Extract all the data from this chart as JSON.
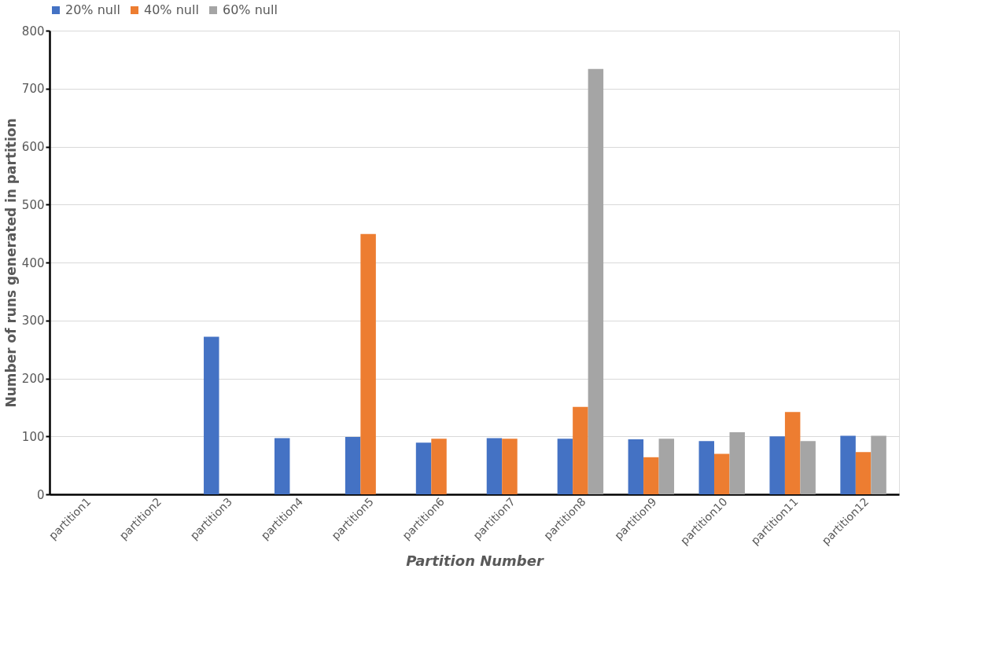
{
  "chart_data": {
    "type": "bar",
    "xlabel": "Partition Number",
    "ylabel": "Number of runs generated in partition",
    "categories": [
      "partition1",
      "partition2",
      "partition3",
      "partition4",
      "partition5",
      "partition6",
      "partition7",
      "partition8",
      "partition9",
      "partition10",
      "partition11",
      "partition12"
    ],
    "series": [
      {
        "name": "20% null",
        "color": "#4472c4",
        "values": [
          null,
          null,
          272,
          97,
          99,
          89,
          97,
          96,
          95,
          92,
          100,
          101
        ]
      },
      {
        "name": "40% null",
        "color": "#ed7d31",
        "values": [
          null,
          null,
          null,
          null,
          449,
          96,
          96,
          151,
          64,
          70,
          142,
          73
        ]
      },
      {
        "name": "60% null",
        "color": "#a5a5a5",
        "values": [
          null,
          null,
          null,
          null,
          null,
          null,
          null,
          734,
          96,
          107,
          92,
          101
        ]
      }
    ],
    "ylim": [
      0,
      800
    ],
    "yticks": [
      0,
      100,
      200,
      300,
      400,
      500,
      600,
      700,
      800
    ],
    "grid": "y",
    "legend": "top"
  }
}
